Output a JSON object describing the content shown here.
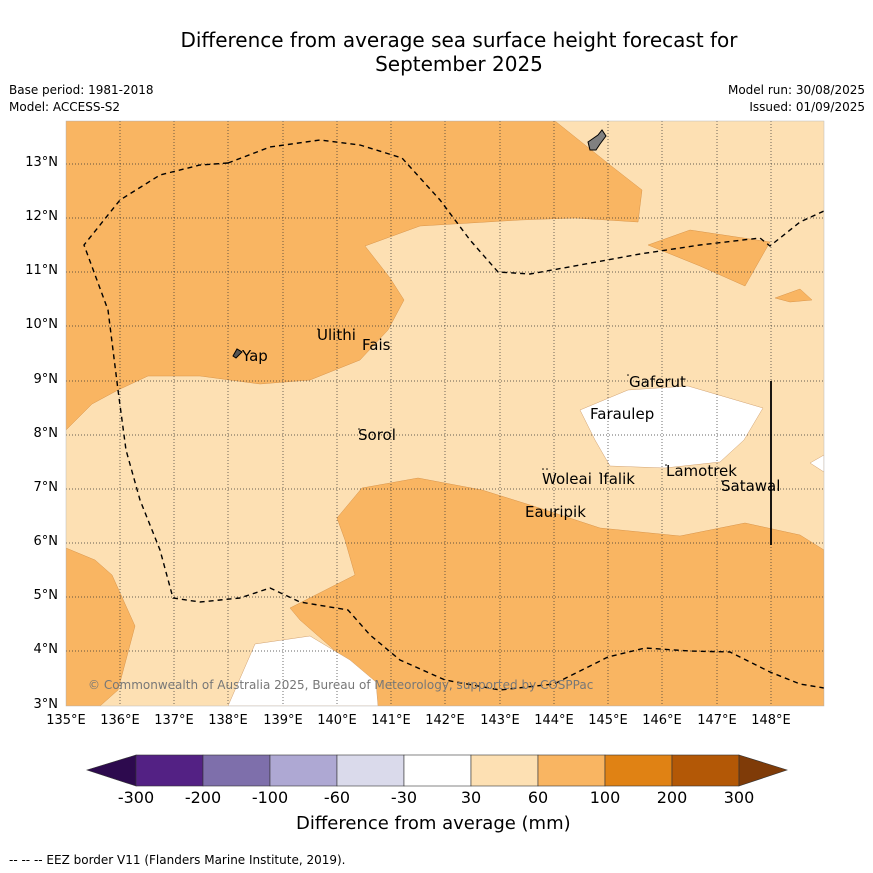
{
  "title": {
    "line1": "Difference from average sea surface height forecast for",
    "line2": "September 2025"
  },
  "meta": {
    "base_period": "Base period: 1981-2018",
    "model": "Model: ACCESS-S2",
    "model_run": "Model run: 30/08/2025",
    "issued": "Issued: 01/09/2025"
  },
  "map": {
    "lon_labels": [
      "135°E",
      "136°E",
      "137°E",
      "138°E",
      "139°E",
      "140°E",
      "141°E",
      "142°E",
      "143°E",
      "144°E",
      "145°E",
      "146°E",
      "147°E",
      "148°E"
    ],
    "lat_labels": [
      "13°N",
      "12°N",
      "11°N",
      "10°N",
      "9°N",
      "8°N",
      "7°N",
      "6°N",
      "5°N",
      "4°N",
      "3°N"
    ],
    "places": [
      "Ulithi",
      "Fais",
      "Yap",
      "Gaferut",
      "Faraulep",
      "Sorol",
      "Lamotrek",
      "Woleai",
      "Ifalik",
      "Satawal",
      "Eauripik"
    ],
    "copyright": "© Commonwealth of Australia 2025, Bureau of Meteorology, supported by COSPPac",
    "colors": {
      "band_30_60": "#fde0b3",
      "band_60_100": "#f9b562",
      "land": "#808080"
    }
  },
  "colorbar": {
    "ticks": [
      "-300",
      "-200",
      "-100",
      "-60",
      "-30",
      "30",
      "60",
      "100",
      "200",
      "300"
    ],
    "colors": [
      "#2d0a4e",
      "#532184",
      "#7e6fab",
      "#aea8d3",
      "#dadaeb",
      "#ffffff",
      "#fde0b3",
      "#f9b562",
      "#e08214",
      "#b35806",
      "#7f3b08"
    ],
    "label": "Difference from average (mm)"
  },
  "footnote": "--  --  -- EEZ border V11 (Flanders Marine Institute, 2019)."
}
